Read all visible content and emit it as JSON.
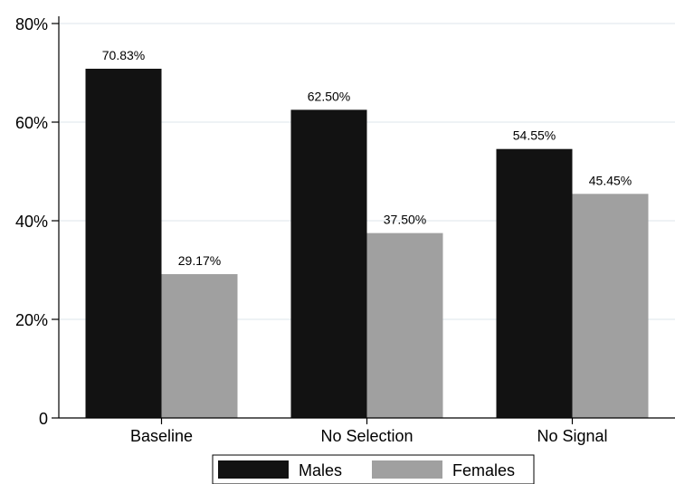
{
  "chart_data": {
    "type": "bar",
    "categories": [
      "Baseline",
      "No Selection",
      "No Signal"
    ],
    "series": [
      {
        "name": "Males",
        "values": [
          70.83,
          62.5,
          54.55
        ],
        "labels": [
          "70.83%",
          "62.50%",
          "54.55%"
        ],
        "color": "#121212"
      },
      {
        "name": "Females",
        "values": [
          29.17,
          37.5,
          45.45
        ],
        "labels": [
          "29.17%",
          "37.50%",
          "45.45%"
        ],
        "color": "#a0a0a0"
      }
    ],
    "ylim": [
      0,
      80
    ],
    "yticks": [
      0,
      20,
      40,
      60,
      80
    ],
    "ytick_labels": [
      "0",
      "20%",
      "40%",
      "60%",
      "80%"
    ],
    "grid": true,
    "grid_color": "#e3ebef",
    "legend_position": "bottom"
  }
}
